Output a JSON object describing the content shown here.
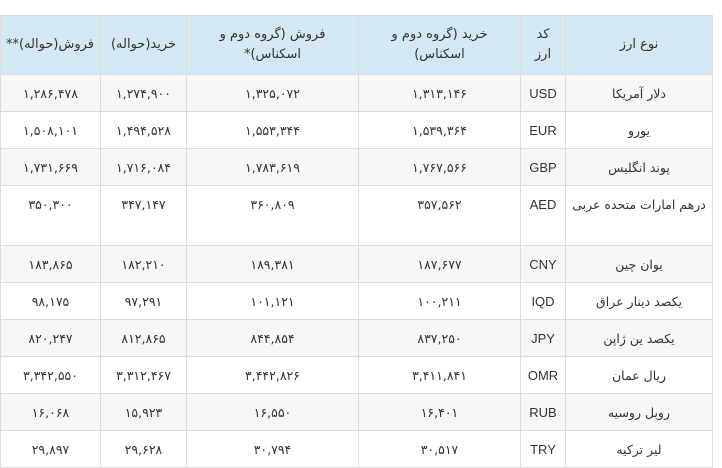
{
  "table": {
    "headers": [
      "نوع ارز",
      "کد ارز",
      "خرید (گروه دوم و اسکناس)",
      "فروش (گروه دوم و اسکناس)*",
      "خرید(حواله)",
      "فروش(حواله)**"
    ],
    "rows": [
      {
        "name": "دلار آمریکا",
        "code": "USD",
        "buy_cash": "۱,۳۱۳,۱۴۶",
        "sell_cash": "۱,۳۲۵,۰۷۲",
        "buy_transfer": "۱,۲۷۴,۹۰۰",
        "sell_transfer": "۱,۲۸۶,۴۷۸"
      },
      {
        "name": "یورو",
        "code": "EUR",
        "buy_cash": "۱,۵۳۹,۳۶۴",
        "sell_cash": "۱,۵۵۳,۳۴۴",
        "buy_transfer": "۱,۴۹۴,۵۲۸",
        "sell_transfer": "۱,۵۰۸,۱۰۱"
      },
      {
        "name": "پوند انگلیس",
        "code": "GBP",
        "buy_cash": "۱,۷۶۷,۵۶۶",
        "sell_cash": "۱,۷۸۳,۶۱۹",
        "buy_transfer": "۱,۷۱۶,۰۸۴",
        "sell_transfer": "۱,۷۳۱,۶۶۹"
      },
      {
        "name": "درهم امارات متحده عربی",
        "code": "AED",
        "buy_cash": "۳۵۷,۵۶۲",
        "sell_cash": "۳۶۰,۸۰۹",
        "buy_transfer": "۳۴۷,۱۴۷",
        "sell_transfer": "۳۵۰,۳۰۰"
      },
      {
        "name": "یوان چین",
        "code": "CNY",
        "buy_cash": "۱۸۷,۶۷۷",
        "sell_cash": "۱۸۹,۳۸۱",
        "buy_transfer": "۱۸۲,۲۱۰",
        "sell_transfer": "۱۸۳,۸۶۵"
      },
      {
        "name": "یکصد دینار عراق",
        "code": "IQD",
        "buy_cash": "۱۰۰,۲۱۱",
        "sell_cash": "۱۰۱,۱۲۱",
        "buy_transfer": "۹۷,۲۹۱",
        "sell_transfer": "۹۸,۱۷۵"
      },
      {
        "name": "یکصد ین ژاپن",
        "code": "JPY",
        "buy_cash": "۸۳۷,۲۵۰",
        "sell_cash": "۸۴۴,۸۵۴",
        "buy_transfer": "۸۱۲,۸۶۵",
        "sell_transfer": "۸۲۰,۲۴۷"
      },
      {
        "name": "ریال عمان",
        "code": "OMR",
        "buy_cash": "۳,۴۱۱,۸۴۱",
        "sell_cash": "۳,۴۴۲,۸۲۶",
        "buy_transfer": "۳,۳۱۲,۴۶۷",
        "sell_transfer": "۳,۳۴۲,۵۵۰"
      },
      {
        "name": "روبل روسیه",
        "code": "RUB",
        "buy_cash": "۱۶,۴۰۱",
        "sell_cash": "۱۶,۵۵۰",
        "buy_transfer": "۱۵,۹۲۳",
        "sell_transfer": "۱۶,۰۶۸"
      },
      {
        "name": "لیر ترکیه",
        "code": "TRY",
        "buy_cash": "۳۰,۵۱۷",
        "sell_cash": "۳۰,۷۹۴",
        "buy_transfer": "۲۹,۶۲۸",
        "sell_transfer": "۲۹,۸۹۷"
      }
    ]
  },
  "colors": {
    "header_bg": "#d3e8f2",
    "row_alt_bg": "#f7f7f7",
    "border": "#dcdcdc"
  }
}
